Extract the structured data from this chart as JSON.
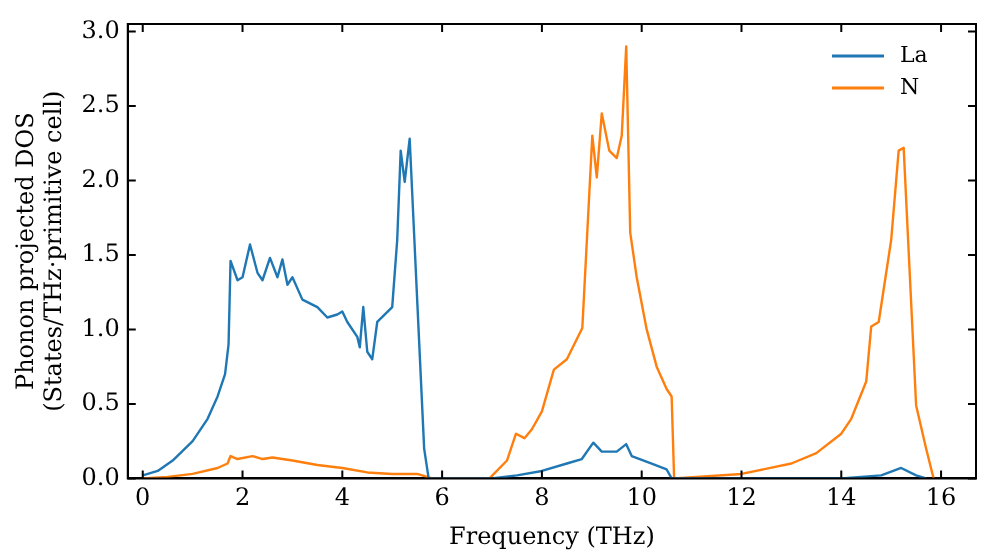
{
  "chart_data": {
    "type": "line",
    "xlabel": "Frequency (THz)",
    "ylabel": "Phonon projected DOS\n(States/THz·primitive cell)",
    "xlim": [
      -0.3,
      16.7
    ],
    "ylim": [
      0,
      3.05
    ],
    "xticks": [
      0,
      2,
      4,
      6,
      8,
      10,
      12,
      14,
      16
    ],
    "yticks": [
      {
        "value": 0,
        "label": "0.0"
      },
      {
        "value": 0.5,
        "label": "0.5"
      },
      {
        "value": 1,
        "label": "1.0"
      },
      {
        "value": 1.5,
        "label": "1.5"
      },
      {
        "value": 2,
        "label": "2.0"
      },
      {
        "value": 2.5,
        "label": "2.5"
      },
      {
        "value": 3,
        "label": "3.0"
      }
    ],
    "grid": false,
    "legend": "top right",
    "marker": "none",
    "line_style": "solid",
    "series": [
      {
        "name": "La",
        "color": "#1f77b4",
        "x": [
          0,
          0.3,
          0.6,
          1.0,
          1.3,
          1.5,
          1.65,
          1.72,
          1.76,
          1.9,
          2.0,
          2.15,
          2.3,
          2.4,
          2.55,
          2.7,
          2.8,
          2.9,
          3.0,
          3.2,
          3.5,
          3.7,
          3.9,
          4.0,
          4.1,
          4.3,
          4.35,
          4.42,
          4.5,
          4.6,
          4.7,
          5.0,
          5.1,
          5.17,
          5.25,
          5.35,
          5.5,
          5.64,
          5.73,
          7.0,
          7.5,
          8.0,
          8.5,
          8.8,
          9.03,
          9.2,
          9.5,
          9.69,
          9.8,
          10.2,
          10.5,
          10.6,
          14,
          14.8,
          15.2,
          15.5,
          15.7
        ],
        "values": [
          0.02,
          0.05,
          0.12,
          0.25,
          0.4,
          0.55,
          0.7,
          0.9,
          1.46,
          1.33,
          1.35,
          1.57,
          1.38,
          1.33,
          1.48,
          1.35,
          1.47,
          1.3,
          1.35,
          1.2,
          1.15,
          1.08,
          1.1,
          1.12,
          1.05,
          0.95,
          0.88,
          1.15,
          0.85,
          0.8,
          1.05,
          1.15,
          1.6,
          2.2,
          1.99,
          2.28,
          1.2,
          0.2,
          0.0,
          0.0,
          0.02,
          0.05,
          0.1,
          0.13,
          0.24,
          0.18,
          0.18,
          0.23,
          0.15,
          0.1,
          0.06,
          0.0,
          0.0,
          0.02,
          0.07,
          0.02,
          0.0
        ]
      },
      {
        "name": "N",
        "color": "#ff7f0e",
        "x": [
          0,
          0.5,
          1.0,
          1.5,
          1.7,
          1.76,
          1.9,
          2.2,
          2.4,
          2.6,
          3.0,
          3.5,
          4.0,
          4.5,
          5.0,
          5.5,
          5.8,
          6.95,
          7.3,
          7.48,
          7.65,
          7.8,
          8.0,
          8.24,
          8.5,
          8.81,
          9.01,
          9.1,
          9.2,
          9.35,
          9.5,
          9.6,
          9.69,
          9.77,
          9.9,
          10.1,
          10.3,
          10.5,
          10.6,
          10.65,
          12,
          13,
          13.5,
          14,
          14.2,
          14.5,
          14.6,
          14.75,
          15.0,
          15.15,
          15.25,
          15.5,
          15.7,
          15.85
        ],
        "values": [
          0.0,
          0.01,
          0.03,
          0.07,
          0.1,
          0.15,
          0.13,
          0.15,
          0.13,
          0.14,
          0.12,
          0.09,
          0.07,
          0.04,
          0.03,
          0.03,
          0.0,
          0.0,
          0.12,
          0.3,
          0.27,
          0.33,
          0.45,
          0.73,
          0.8,
          1.01,
          2.3,
          2.02,
          2.45,
          2.2,
          2.15,
          2.3,
          2.9,
          1.65,
          1.35,
          1.0,
          0.75,
          0.6,
          0.55,
          0.0,
          0.03,
          0.1,
          0.17,
          0.3,
          0.4,
          0.65,
          1.02,
          1.05,
          1.6,
          2.2,
          2.22,
          0.49,
          0.2,
          0.0
        ]
      }
    ]
  }
}
